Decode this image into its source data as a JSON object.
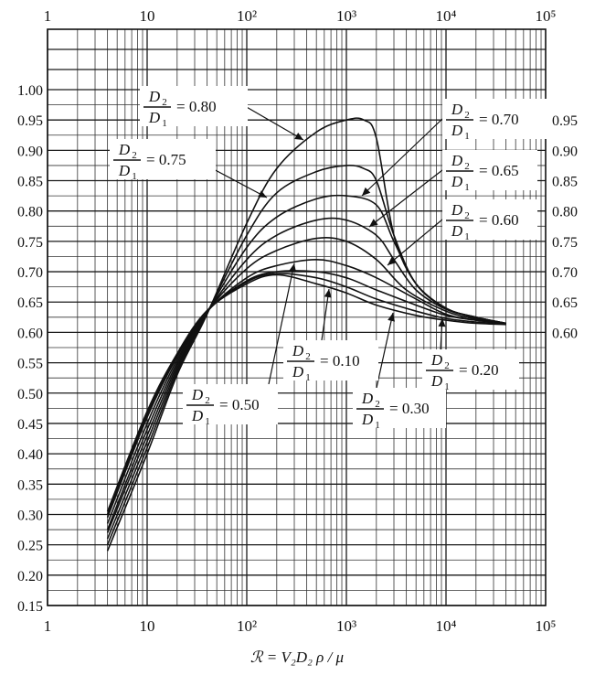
{
  "chart_data": {
    "type": "line",
    "xscale": "log",
    "xlim": [
      1,
      100000
    ],
    "ylim": [
      0.15,
      1.0
    ],
    "x_ticks": [
      "1",
      "10",
      "10²",
      "10³",
      "10⁴",
      "10⁵"
    ],
    "y_ticks_left": [
      "1.00",
      "0.95",
      "0.90",
      "0.85",
      "0.80",
      "0.75",
      "0.70",
      "0.65",
      "0.60",
      "0.55",
      "0.50",
      "0.45",
      "0.40",
      "0.35",
      "0.30",
      "0.25",
      "0.20",
      "0.15"
    ],
    "y_ticks_right": [
      "0.95",
      "0.90",
      "0.85",
      "0.80",
      "0.75",
      "0.70",
      "0.65",
      "0.60"
    ],
    "xlabel": "ℛ = V₂D₂ ρ / μ",
    "grid": true,
    "series": [
      {
        "name": "D2/D1 = 0.80",
        "x": [
          4,
          10,
          20,
          40,
          100,
          200,
          500,
          1000,
          1500,
          2000,
          3000,
          5000,
          10000,
          20000,
          40000
        ],
        "y": [
          0.24,
          0.4,
          0.53,
          0.63,
          0.78,
          0.87,
          0.93,
          0.95,
          0.95,
          0.92,
          0.76,
          0.68,
          0.64,
          0.625,
          0.615
        ]
      },
      {
        "name": "D2/D1 = 0.75",
        "x": [
          4,
          10,
          20,
          40,
          100,
          200,
          500,
          1000,
          1500,
          2000,
          3000,
          5000,
          10000,
          20000,
          40000
        ],
        "y": [
          0.25,
          0.41,
          0.535,
          0.632,
          0.76,
          0.83,
          0.865,
          0.875,
          0.87,
          0.85,
          0.76,
          0.68,
          0.64,
          0.625,
          0.615
        ]
      },
      {
        "name": "D2/D1 = 0.70",
        "x": [
          4,
          10,
          20,
          40,
          100,
          200,
          500,
          1000,
          2000,
          3000,
          5000,
          10000,
          20000,
          40000
        ],
        "y": [
          0.26,
          0.42,
          0.54,
          0.633,
          0.74,
          0.79,
          0.82,
          0.825,
          0.81,
          0.75,
          0.68,
          0.64,
          0.625,
          0.615
        ]
      },
      {
        "name": "D2/D1 = 0.65",
        "x": [
          4,
          10,
          20,
          40,
          100,
          200,
          500,
          1000,
          2000,
          3000,
          5000,
          10000,
          20000,
          40000
        ],
        "y": [
          0.27,
          0.43,
          0.545,
          0.633,
          0.72,
          0.76,
          0.785,
          0.785,
          0.76,
          0.72,
          0.67,
          0.638,
          0.624,
          0.615
        ]
      },
      {
        "name": "D2/D1 = 0.60",
        "x": [
          4,
          10,
          20,
          40,
          100,
          200,
          500,
          1000,
          2000,
          4000,
          10000,
          20000,
          40000
        ],
        "y": [
          0.275,
          0.44,
          0.55,
          0.634,
          0.705,
          0.735,
          0.755,
          0.75,
          0.72,
          0.67,
          0.635,
          0.622,
          0.615
        ]
      },
      {
        "name": "D2/D1 = 0.50",
        "x": [
          4,
          10,
          20,
          40,
          100,
          200,
          500,
          1000,
          2000,
          5000,
          10000,
          20000,
          40000
        ],
        "y": [
          0.285,
          0.45,
          0.555,
          0.634,
          0.69,
          0.71,
          0.72,
          0.71,
          0.69,
          0.655,
          0.63,
          0.62,
          0.615
        ]
      },
      {
        "name": "D2/D1 = 0.30",
        "x": [
          4,
          10,
          20,
          40,
          100,
          200,
          500,
          1000,
          2000,
          5000,
          10000,
          20000,
          40000
        ],
        "y": [
          0.295,
          0.46,
          0.56,
          0.635,
          0.685,
          0.7,
          0.7,
          0.69,
          0.67,
          0.645,
          0.628,
          0.62,
          0.615
        ]
      },
      {
        "name": "D2/D1 = 0.20",
        "x": [
          4,
          10,
          20,
          40,
          100,
          200,
          500,
          1000,
          2000,
          5000,
          10000,
          20000,
          40000
        ],
        "y": [
          0.3,
          0.465,
          0.563,
          0.635,
          0.683,
          0.697,
          0.69,
          0.675,
          0.655,
          0.635,
          0.623,
          0.617,
          0.614
        ]
      },
      {
        "name": "D2/D1 = 0.10",
        "x": [
          4,
          10,
          20,
          40,
          100,
          200,
          500,
          1000,
          2000,
          5000,
          10000,
          20000,
          40000
        ],
        "y": [
          0.305,
          0.47,
          0.565,
          0.636,
          0.68,
          0.695,
          0.68,
          0.665,
          0.645,
          0.628,
          0.62,
          0.615,
          0.613
        ]
      }
    ],
    "annotations": [
      {
        "num": "D",
        "num_sub": "2",
        "den": "D",
        "den_sub": "1",
        "value": "= 0.80"
      },
      {
        "num": "D",
        "num_sub": "2",
        "den": "D",
        "den_sub": "1",
        "value": "= 0.75"
      },
      {
        "num": "D",
        "num_sub": "2",
        "den": "D",
        "den_sub": "1",
        "value": "= 0.70"
      },
      {
        "num": "D",
        "num_sub": "2",
        "den": "D",
        "den_sub": "1",
        "value": "= 0.65"
      },
      {
        "num": "D",
        "num_sub": "2",
        "den": "D",
        "den_sub": "1",
        "value": "= 0.60"
      },
      {
        "num": "D",
        "num_sub": "2",
        "den": "D",
        "den_sub": "1",
        "value": "= 0.50"
      },
      {
        "num": "D",
        "num_sub": "2",
        "den": "D",
        "den_sub": "1",
        "value": "= 0.10"
      },
      {
        "num": "D",
        "num_sub": "2",
        "den": "D",
        "den_sub": "1",
        "value": "= 0.30"
      },
      {
        "num": "D",
        "num_sub": "2",
        "den": "D",
        "den_sub": "1",
        "value": "= 0.20"
      }
    ]
  }
}
